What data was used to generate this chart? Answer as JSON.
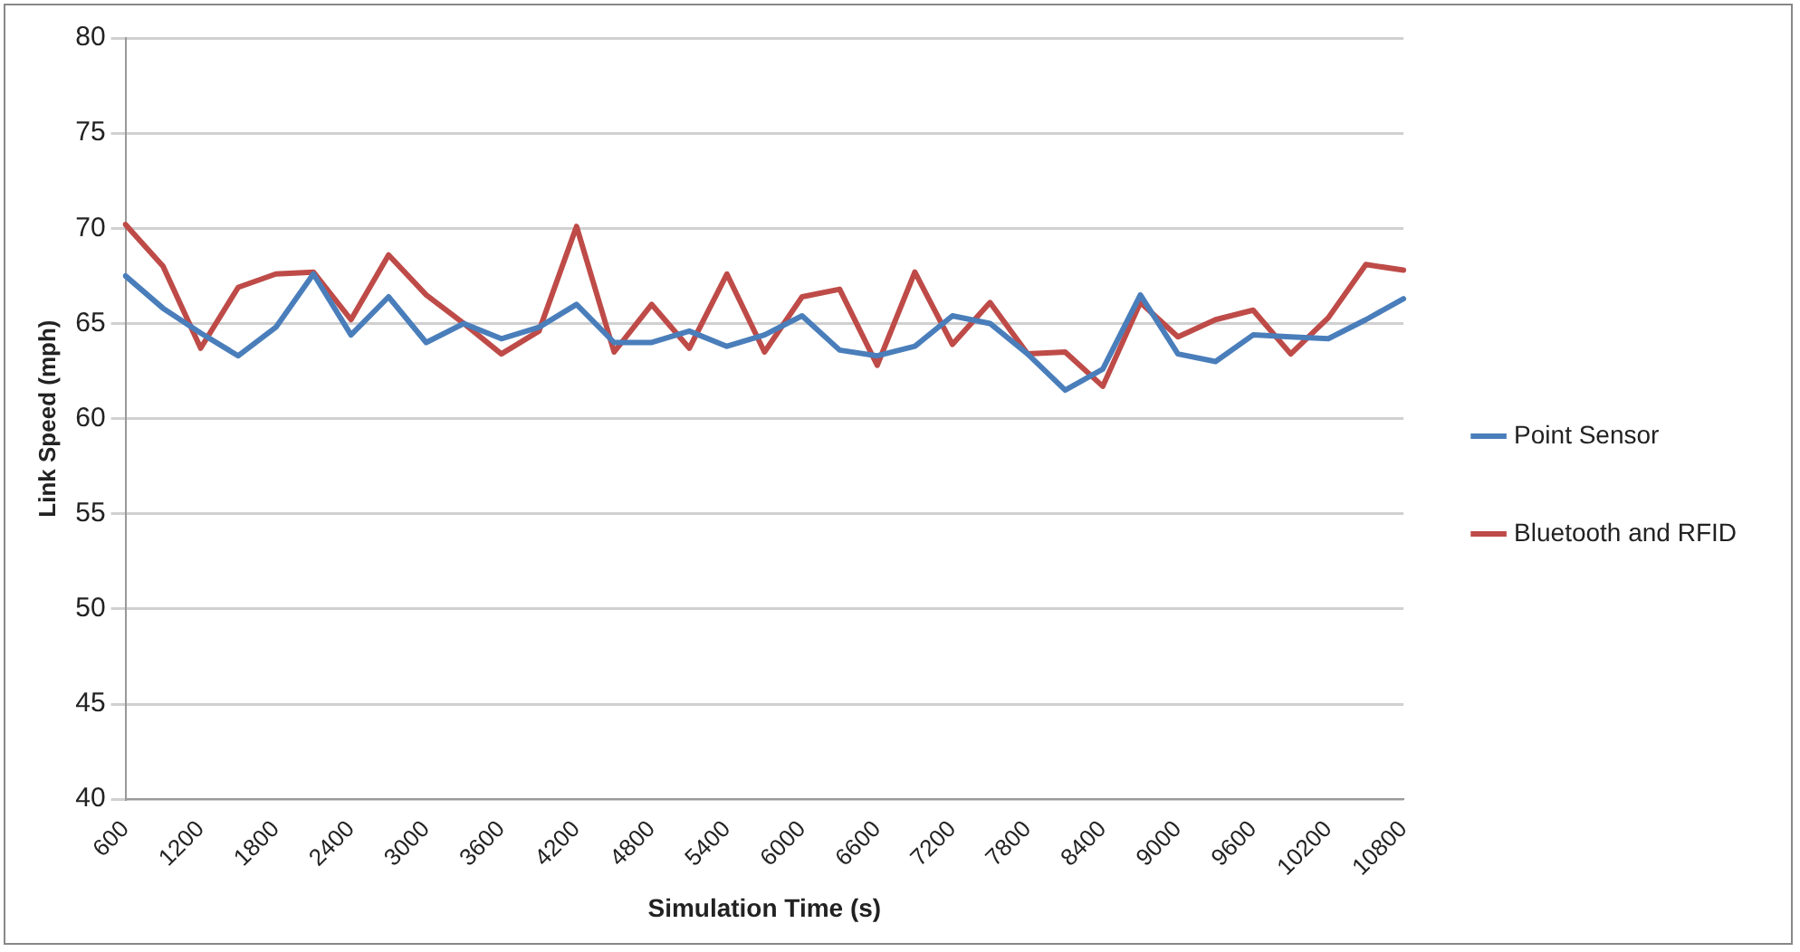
{
  "chart_data": {
    "type": "line",
    "xlabel": "Simulation Time (s)",
    "ylabel": "Link Speed (mph)",
    "categories": [
      "600",
      null,
      "1200",
      null,
      "1800",
      null,
      "2400",
      null,
      "3000",
      null,
      "3600",
      null,
      "4200",
      null,
      "4800",
      null,
      "5400",
      null,
      "6000",
      null,
      "6600",
      null,
      "7200",
      null,
      "7800",
      null,
      "8400",
      null,
      "9000",
      null,
      "9600",
      null,
      "10200",
      null,
      "10800"
    ],
    "series": [
      {
        "name": "Point Sensor",
        "color": "#4a7ebb",
        "values": [
          67.5,
          65.8,
          64.5,
          63.3,
          64.8,
          67.6,
          64.4,
          66.4,
          64.0,
          65.0,
          64.2,
          64.8,
          66.0,
          64.0,
          64.0,
          64.6,
          63.8,
          64.4,
          65.4,
          63.6,
          63.3,
          63.8,
          65.4,
          65.0,
          63.4,
          61.5,
          62.6,
          66.5,
          63.4,
          63.0,
          64.4,
          64.3,
          64.2,
          65.2,
          66.3
        ]
      },
      {
        "name": "Bluetooth and RFID",
        "color": "#be4b48",
        "values": [
          70.2,
          68.0,
          63.7,
          66.9,
          67.6,
          67.7,
          65.2,
          68.6,
          66.5,
          65.0,
          63.4,
          64.6,
          70.1,
          63.5,
          66.0,
          63.7,
          67.6,
          63.5,
          66.4,
          66.8,
          62.8,
          67.7,
          63.9,
          66.1,
          63.4,
          63.5,
          61.7,
          66.1,
          64.3,
          65.2,
          65.7,
          63.4,
          65.3,
          68.1,
          67.8
        ]
      }
    ],
    "ylim": [
      40,
      80
    ],
    "yticks": [
      40,
      45,
      50,
      55,
      60,
      65,
      70,
      75,
      80
    ],
    "grid": "y",
    "legend": "right",
    "marker": "none",
    "line_style": "solid"
  }
}
